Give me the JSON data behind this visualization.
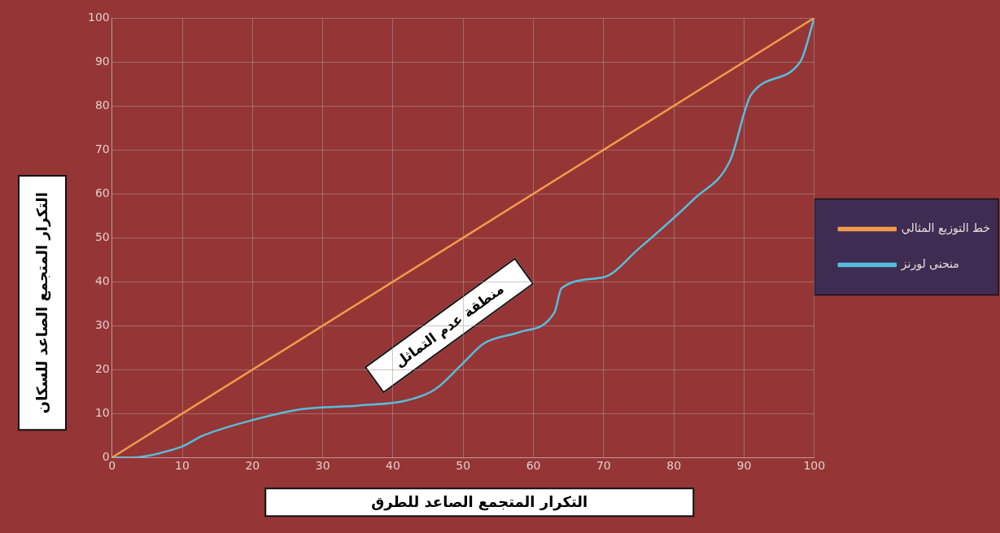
{
  "chart_data": {
    "type": "line",
    "xlabel": "التكرار المتجمع الصاعد للطرق",
    "ylabel": "التكرار المتجمع الصاعد للسكان",
    "annotations": [
      "منطقة عدم التماثل"
    ],
    "series": [
      {
        "name": "خط التوزيع المثالي",
        "color": "#f39a4a",
        "x": [
          0,
          100
        ],
        "values": [
          0,
          100
        ]
      },
      {
        "name": "منحنى لورنز",
        "color": "#56bedc",
        "x": [
          0,
          3,
          5.5,
          8,
          10,
          13,
          20,
          27,
          35,
          42,
          46,
          50,
          53,
          58,
          63,
          64,
          70,
          75,
          83,
          88,
          91,
          98,
          100
        ],
        "values": [
          0,
          0,
          0.5,
          1.5,
          2.5,
          5,
          8.5,
          11,
          11.8,
          13,
          15.5,
          21.5,
          26,
          28.5,
          33,
          38.5,
          41,
          47.5,
          59,
          67.5,
          82.5,
          90,
          100
        ]
      }
    ],
    "xlim": [
      0,
      100
    ],
    "xticks": [
      0,
      10,
      20,
      30,
      40,
      50,
      60,
      70,
      80,
      90,
      100
    ],
    "ylim": [
      0,
      100
    ],
    "yticks": [
      0,
      10,
      20,
      30,
      40,
      50,
      60,
      70,
      80,
      90,
      100
    ],
    "grid": true,
    "legend": "right",
    "marker": "none",
    "line_style": "solid"
  }
}
